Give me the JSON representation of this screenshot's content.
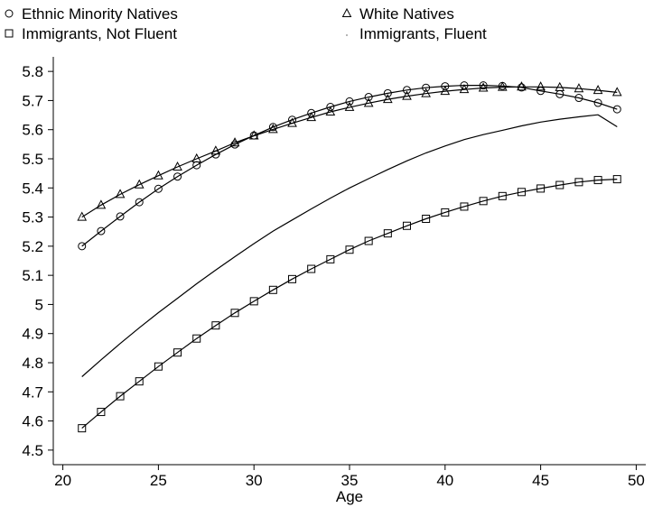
{
  "chart_data": {
    "type": "line",
    "title": "",
    "xlabel": "Age",
    "ylabel": "",
    "xlim": [
      19.5,
      50.5
    ],
    "ylim": [
      4.45,
      5.85
    ],
    "x_ticks": [
      20,
      25,
      30,
      35,
      40,
      45,
      50
    ],
    "y_ticks": [
      4.5,
      4.6,
      4.7,
      4.8,
      4.9,
      5,
      5.1,
      5.2,
      5.3,
      5.4,
      5.5,
      5.6,
      5.7,
      5.8
    ],
    "grid": false,
    "legend_position": "top",
    "x": [
      21,
      22,
      23,
      24,
      25,
      26,
      27,
      28,
      29,
      30,
      31,
      32,
      33,
      34,
      35,
      36,
      37,
      38,
      39,
      40,
      41,
      42,
      43,
      44,
      45,
      46,
      47,
      48,
      49
    ],
    "series": [
      {
        "name": "Ethnic Minority Natives",
        "marker": "circle",
        "values": [
          5.2,
          5.252,
          5.302,
          5.351,
          5.397,
          5.439,
          5.478,
          5.515,
          5.549,
          5.58,
          5.609,
          5.634,
          5.657,
          5.678,
          5.697,
          5.712,
          5.725,
          5.736,
          5.744,
          5.749,
          5.752,
          5.752,
          5.75,
          5.745,
          5.733,
          5.722,
          5.709,
          5.692,
          5.67
        ]
      },
      {
        "name": "White Natives",
        "marker": "triangle",
        "values": [
          5.3,
          5.341,
          5.378,
          5.411,
          5.442,
          5.472,
          5.5,
          5.527,
          5.555,
          5.579,
          5.601,
          5.622,
          5.642,
          5.661,
          5.677,
          5.691,
          5.704,
          5.715,
          5.724,
          5.732,
          5.738,
          5.743,
          5.746,
          5.747,
          5.747,
          5.745,
          5.741,
          5.735,
          5.728
        ]
      },
      {
        "name": "Immigrants, Not Fluent",
        "marker": "square",
        "values": [
          4.575,
          4.631,
          4.685,
          4.736,
          4.787,
          4.835,
          4.883,
          4.928,
          4.971,
          5.011,
          5.05,
          5.087,
          5.122,
          5.155,
          5.188,
          5.218,
          5.244,
          5.27,
          5.294,
          5.316,
          5.336,
          5.355,
          5.372,
          5.386,
          5.398,
          5.41,
          5.42,
          5.427,
          5.43
        ]
      },
      {
        "name": "Immigrants, Fluent",
        "marker": "none",
        "values": [
          4.752,
          4.81,
          4.866,
          4.92,
          4.972,
          5.021,
          5.071,
          5.118,
          5.164,
          5.209,
          5.252,
          5.29,
          5.328,
          5.365,
          5.4,
          5.432,
          5.463,
          5.493,
          5.52,
          5.544,
          5.566,
          5.583,
          5.598,
          5.613,
          5.626,
          5.636,
          5.644,
          5.651,
          5.61
        ]
      }
    ]
  }
}
